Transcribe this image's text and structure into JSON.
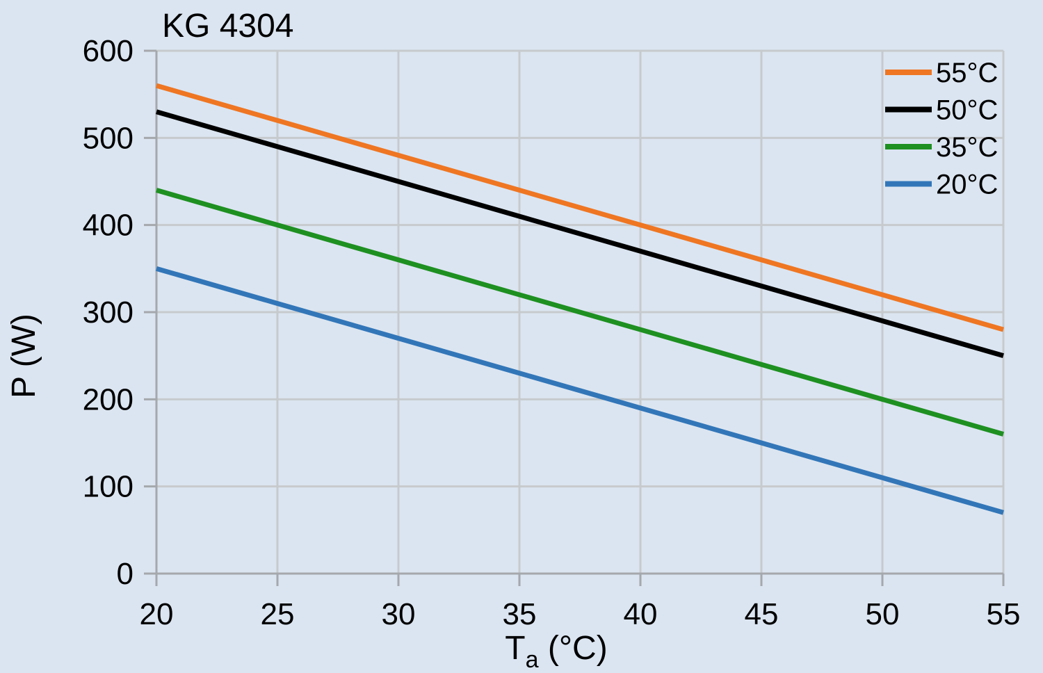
{
  "colors": {
    "background": "#dbe5f1",
    "grid": "#c7cacd",
    "axis": "#a5a8ac",
    "text": "#000000"
  },
  "chart_data": {
    "type": "line",
    "title": "KG 4304",
    "xlabel": "Ta (°C)",
    "xlabel_parts": {
      "main": "T",
      "sub": "a",
      "rest": " (°C)"
    },
    "ylabel": "P (W)",
    "xlim": [
      20,
      55
    ],
    "ylim": [
      0,
      600
    ],
    "xticks": [
      20,
      25,
      30,
      35,
      40,
      45,
      50,
      55
    ],
    "yticks": [
      0,
      100,
      200,
      300,
      400,
      500,
      600
    ],
    "grid": true,
    "legend_position": "top-right",
    "x": [
      20,
      25,
      30,
      35,
      40,
      45,
      50,
      55
    ],
    "series": [
      {
        "name": "55°C",
        "color": "#EF7622",
        "values": [
          560,
          520,
          480,
          440,
          400,
          360,
          320,
          280
        ]
      },
      {
        "name": "50°C",
        "color": "#000000",
        "values": [
          530,
          490,
          450,
          410,
          370,
          330,
          290,
          250
        ]
      },
      {
        "name": "35°C",
        "color": "#1E9021",
        "values": [
          440,
          400,
          360,
          320,
          280,
          240,
          200,
          160
        ]
      },
      {
        "name": "20°C",
        "color": "#3276B8",
        "values": [
          350,
          310,
          270,
          230,
          190,
          150,
          110,
          70
        ]
      }
    ]
  }
}
